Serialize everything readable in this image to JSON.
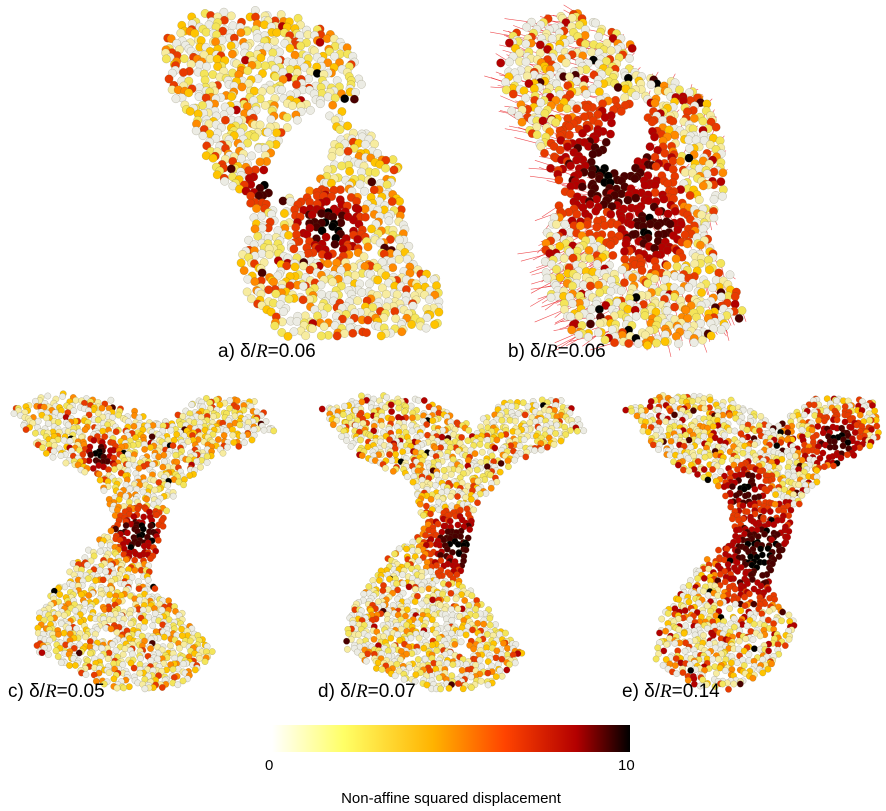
{
  "panels": [
    {
      "id": "a",
      "prefix": "a) δ/",
      "var": "R",
      "suffix": "=0.06",
      "seed": 11,
      "hot": [
        [
          330,
          225,
          40
        ],
        [
          265,
          185,
          25
        ]
      ],
      "heat": 0.12,
      "vectors": false
    },
    {
      "id": "b",
      "prefix": "b) δ/",
      "var": "R",
      "suffix": "=0.06",
      "seed": 23,
      "hot": [
        [
          610,
          170,
          70
        ],
        [
          650,
          230,
          45
        ]
      ],
      "heat": 0.2,
      "vectors": true
    },
    {
      "id": "c",
      "prefix": "c) δ/",
      "var": "R",
      "suffix": "=0.05",
      "seed": 37,
      "hot": [
        [
          140,
          535,
          30
        ],
        [
          100,
          455,
          20
        ]
      ],
      "heat": 0.1,
      "vectors": false
    },
    {
      "id": "d",
      "prefix": "d) δ/",
      "var": "R",
      "suffix": "=0.07",
      "seed": 41,
      "hot": [
        [
          458,
          545,
          38
        ]
      ],
      "heat": 0.14,
      "vectors": false
    },
    {
      "id": "e",
      "prefix": "e) δ/",
      "var": "R",
      "suffix": "=0.14",
      "seed": 53,
      "hot": [
        [
          762,
          555,
          55
        ],
        [
          745,
          490,
          28
        ],
        [
          838,
          440,
          30
        ]
      ],
      "heat": 0.24,
      "vectors": false
    }
  ],
  "colorbar": {
    "min_label": "0",
    "max_label": "10",
    "title": "Non-affine squared displacement",
    "stops": [
      "#ffffff",
      "#ffff66",
      "#ffb300",
      "#ff4400",
      "#b30000",
      "#000000"
    ]
  }
}
